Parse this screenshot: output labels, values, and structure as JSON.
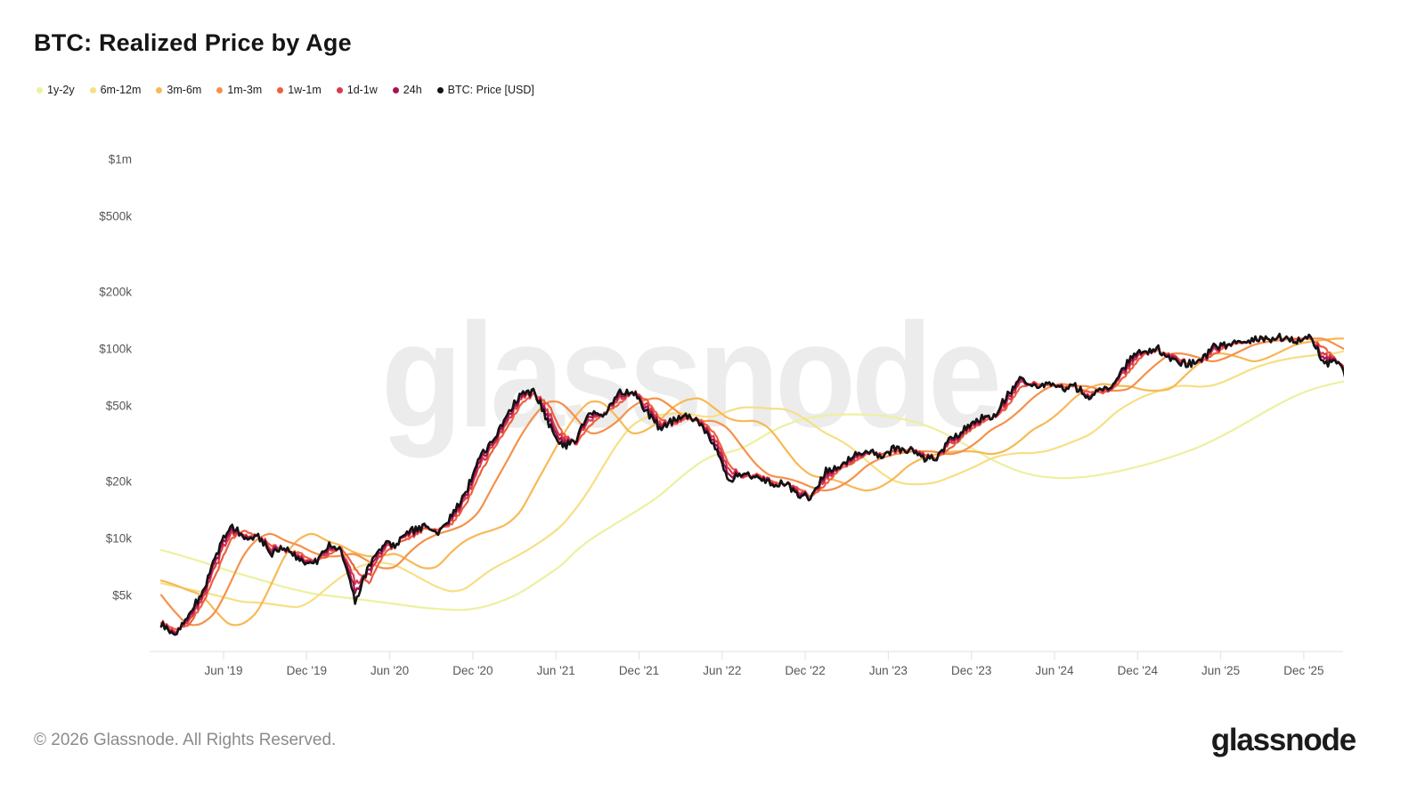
{
  "header": {
    "title": "BTC: Realized Price by Age"
  },
  "chart": {
    "watermark": "glassnode"
  },
  "footer": {
    "copyright": "© 2026 Glassnode. All Rights Reserved.",
    "brand": "glassnode"
  },
  "chart_data": {
    "type": "line",
    "title": "BTC: Realized Price by Age",
    "legend_position": "top-left",
    "grid": false,
    "x_axis": {
      "range_years": [
        2019.0,
        2026.2
      ],
      "ticks": [
        {
          "label": "Jun '19",
          "t": 2019.417
        },
        {
          "label": "Dec '19",
          "t": 2019.917
        },
        {
          "label": "Jun '20",
          "t": 2020.417
        },
        {
          "label": "Dec '20",
          "t": 2020.917
        },
        {
          "label": "Jun '21",
          "t": 2021.417
        },
        {
          "label": "Dec '21",
          "t": 2021.917
        },
        {
          "label": "Jun '22",
          "t": 2022.417
        },
        {
          "label": "Dec '22",
          "t": 2022.917
        },
        {
          "label": "Jun '23",
          "t": 2023.417
        },
        {
          "label": "Dec '23",
          "t": 2023.917
        },
        {
          "label": "Jun '24",
          "t": 2024.417
        },
        {
          "label": "Dec '24",
          "t": 2024.917
        },
        {
          "label": "Jun '25",
          "t": 2025.417
        },
        {
          "label": "Dec '25",
          "t": 2025.917
        }
      ]
    },
    "y_axis": {
      "scale": "log",
      "unit": "USD",
      "values_in": "thousands_of_usd",
      "ticks": [
        {
          "label": "$1m",
          "v": 1000
        },
        {
          "label": "$500k",
          "v": 500
        },
        {
          "label": "$200k",
          "v": 200
        },
        {
          "label": "$100k",
          "v": 100
        },
        {
          "label": "$50k",
          "v": 50
        },
        {
          "label": "$20k",
          "v": 20
        },
        {
          "label": "$10k",
          "v": 10
        },
        {
          "label": "$5k",
          "v": 5
        }
      ]
    },
    "series": [
      {
        "name": "1y-2y",
        "color": "#edf0a0",
        "x_start": 2019.042,
        "x_step_months": 1,
        "values": [
          8.7,
          8.3,
          7.9,
          7.5,
          7.1,
          6.7,
          6.4,
          6.1,
          5.8,
          5.5,
          5.3,
          5.1,
          5.0,
          4.9,
          4.8,
          4.7,
          4.6,
          4.5,
          4.4,
          4.3,
          4.25,
          4.2,
          4.2,
          4.3,
          4.5,
          4.8,
          5.2,
          5.8,
          6.5,
          7.3,
          8.7,
          9.9,
          11.0,
          12.2,
          13.5,
          15.0,
          16.8,
          19.5,
          22.5,
          25.5,
          27.8,
          28.4,
          30.0,
          33.0,
          36.5,
          39.5,
          42.0,
          43.5,
          44.5,
          45.0,
          45.2,
          45.0,
          44.5,
          43.5,
          42.0,
          40.0,
          37.5,
          34.5,
          31.5,
          28.5,
          26.0,
          24.0,
          22.5,
          21.5,
          21.0,
          20.8,
          20.9,
          21.2,
          21.8,
          22.5,
          23.4,
          24.4,
          25.6,
          27.0,
          28.6,
          30.5,
          33.0,
          36.0,
          39.5,
          43.5,
          48.0,
          52.5,
          57.0,
          61.0,
          64.0,
          66.5,
          68.5
        ]
      },
      {
        "name": "6m-12m",
        "color": "#f7df85",
        "x_start": 2019.042,
        "x_step_months": 1,
        "values": [
          5.8,
          5.6,
          5.4,
          5.2,
          5.0,
          4.8,
          4.6,
          4.6,
          4.5,
          4.4,
          4.3,
          4.75,
          5.5,
          6.3,
          7.0,
          7.4,
          7.5,
          7.2,
          6.6,
          6.0,
          5.5,
          5.2,
          5.4,
          6.2,
          7.0,
          7.6,
          8.3,
          9.2,
          10.3,
          11.8,
          14.5,
          18.5,
          24.6,
          32.3,
          39.9,
          43.7,
          44.83,
          45.83,
          46.0,
          43.83,
          43.83,
          47.17,
          49.33,
          49.17,
          48.33,
          48.33,
          45.17,
          40.17,
          35.67,
          33.08,
          29.58,
          25.45,
          22.08,
          19.85,
          19.28,
          19.33,
          19.72,
          21.1,
          22.63,
          24.4,
          26.63,
          27.75,
          28.28,
          28.17,
          28.92,
          30.63,
          32.8,
          35.02,
          39.93,
          46.97,
          51.88,
          56.63,
          59.8,
          63.5,
          64.08,
          63.0,
          64.0,
          68.33,
          74.0,
          79.83,
          84.25,
          87.67,
          90.33,
          92.17,
          93.83,
          95.5,
          99.83
        ]
      },
      {
        "name": "3m-6m",
        "color": "#f7b955",
        "x_start": 2019.042,
        "x_step_months": 1,
        "values": [
          6.0,
          5.7,
          5.3,
          5.03,
          4.07,
          3.43,
          3.53,
          4.1,
          5.83,
          8.43,
          10.13,
          10.8,
          9.63,
          9.2,
          8.37,
          8.0,
          8.07,
          8.4,
          7.53,
          6.87,
          7.03,
          8.6,
          9.83,
          10.6,
          11.1,
          11.87,
          13.83,
          19.23,
          25.83,
          35.33,
          45.33,
          54.0,
          52.0,
          43.0,
          34.67,
          37.0,
          41.67,
          50.0,
          54.33,
          55.33,
          48.33,
          42.33,
          41.33,
          42.0,
          38.0,
          30.0,
          24.17,
          21.17,
          20.9,
          20.0,
          18.53,
          17.67,
          18.67,
          20.9,
          24.53,
          26.6,
          27.9,
          28.73,
          28.9,
          28.67,
          27.6,
          28.93,
          32.6,
          38.0,
          41.1,
          47.27,
          55.93,
          62.67,
          66.0,
          63.67,
          63.67,
          60.33,
          60.0,
          61.33,
          73.33,
          85.0,
          96.0,
          94.0,
          89.67,
          84.67,
          90.33,
          98.0,
          106.33,
          109.33,
          111.67,
          113.67,
          113.0
        ]
      },
      {
        "name": "1m-3m",
        "color": "#f5914a",
        "x_start": 2019.042,
        "x_step_months": 1,
        "values": [
          5.03,
          4.07,
          3.43,
          3.53,
          4.1,
          5.83,
          8.43,
          10.13,
          10.8,
          9.63,
          9.2,
          8.37,
          8.0,
          8.07,
          8.4,
          7.53,
          6.87,
          7.03,
          8.6,
          9.83,
          10.6,
          11.1,
          11.87,
          13.83,
          19.23,
          25.83,
          35.33,
          45.33,
          54.0,
          52.0,
          43.0,
          34.67,
          37.0,
          41.67,
          50.0,
          54.33,
          55.33,
          48.33,
          42.33,
          41.33,
          42.0,
          38.0,
          30.0,
          24.17,
          21.17,
          20.9,
          20.0,
          18.53,
          17.67,
          18.67,
          20.9,
          24.53,
          26.6,
          27.9,
          28.73,
          28.9,
          28.67,
          27.6,
          28.93,
          32.6,
          38.0,
          41.1,
          47.27,
          55.93,
          62.67,
          66.0,
          63.67,
          63.67,
          60.33,
          60.0,
          61.33,
          73.33,
          85.0,
          96.0,
          94.0,
          89.67,
          84.67,
          90.33,
          98.0,
          106.33,
          109.33,
          111.67,
          113.67,
          113.0,
          114.0,
          103.33,
          95.0
        ]
      },
      {
        "name": "1w-1m",
        "color": "#ee5f3d",
        "x_start": 2019.042,
        "x_step_months": 1,
        "values": [
          3.61,
          3.32,
          3.51,
          4.54,
          6.6,
          9.88,
          11.13,
          10.3,
          9.2,
          8.62,
          8.46,
          7.53,
          8.1,
          9.02,
          6.91,
          5.77,
          8.15,
          9.3,
          10.02,
          11.22,
          11.24,
          11.88,
          15.14,
          21.78,
          29.7,
          38.85,
          50.95,
          57.9,
          50.45,
          35.5,
          31.8,
          39.85,
          45.65,
          50.75,
          59.45,
          54.15,
          42.95,
          39.8,
          42.9,
          42.2,
          35.5,
          24.5,
          21.13,
          21.83,
          20.19,
          19.47,
          18.36,
          16.6,
          19.39,
          23.03,
          25.19,
          28.18,
          28.19,
          28.46,
          29.78,
          28.15,
          26.64,
          29.82,
          35.3,
          39.98,
          42.91,
          48.74,
          61.85,
          66.3,
          64.35,
          64.2,
          62.45,
          59.85,
          58.25,
          63.7,
          78.25,
          93.8,
          97.8,
          92.3,
          84.65,
          83.9,
          93.1,
          104.35,
          107.8,
          110.9,
          112.45,
          114.65,
          113.3,
          112.7,
          101.6,
          84.45,
          74.65
        ]
      },
      {
        "name": "1d-1w",
        "color": "#d83a4f",
        "x_start": 2019.042,
        "x_step_months": 1,
        "values": [
          3.56,
          3.22,
          3.73,
          4.84,
          7.37,
          10.75,
          10.75,
          10.3,
          8.9,
          8.79,
          8.16,
          7.38,
          8.6,
          8.92,
          5.86,
          6.42,
          8.67,
          9.3,
          10.42,
          11.39,
          11.04,
          12.48,
          16.21,
          24.15,
          31.2,
          42.1,
          53.7,
          58.4,
          45.7,
          33.0,
          32.8,
          43.1,
          44.9,
          54.5,
          59.7,
          50.9,
          40.7,
          40.8,
          43.4,
          41.2,
          33,
          23,
          21.75,
          21.45,
          19.74,
          19.62,
          17.56,
          16.6,
          20.94,
          23.15,
          26.24,
          28.55,
          27.74,
          29.16,
          29.65,
          27.4,
          26.71,
          31.49,
          36.3,
          41.35,
          42.86,
          52.04,
          65.1,
          64.8,
          65.1,
          63.2,
          62.7,
          58.1,
          59.5,
          65.2,
          84.5,
          94.8,
          98.8,
          90.2,
          83.9,
          84.4,
          97.6,
          105.1,
          108.8,
          111.4,
          112.7,
          115.1,
          111.8,
          114.2,
          93.6,
          84.7,
          68.9
        ]
      },
      {
        "name": "24h",
        "color": "#a41353",
        "x_start": 2019.042,
        "x_step_months": 1,
        "values": [
          3.53,
          3.16,
          3.87,
          5.02,
          7.84,
          11.28,
          10.53,
          10.3,
          8.6,
          8.9,
          7.98,
          7.29,
          8.9,
          8.86,
          5.23,
          6.81,
          8.99,
          9.3,
          10.66,
          11.5,
          10.92,
          12.84,
          16.86,
          25.58,
          32.1,
          44.05,
          55.35,
          58.7,
          42.85,
          31.5,
          33.4,
          45.05,
          44.45,
          56.75,
          59.85,
          48.95,
          39.35,
          41.4,
          43.7,
          40.6,
          31.5,
          21.5,
          22.13,
          21.23,
          19.47,
          19.71,
          17.08,
          16.6,
          21.87,
          23.23,
          26.87,
          28.78,
          27.47,
          29.58,
          29.58,
          26.95,
          26.77,
          32.5,
          36.9,
          42.18,
          42.83,
          54.02,
          67.05,
          63.9,
          65.55,
          62.6,
          62.85,
          57.05,
          60.25,
          66.1,
          88.25,
          95.4,
          99.4,
          88.1,
          83.45,
          84.7,
          100.3,
          105.55,
          109.4,
          111.7,
          112.85,
          115.55,
          110.9,
          115.1,
          88.8,
          84.85,
          65.45
        ]
      },
      {
        "name": "BTC: Price [USD]",
        "color": "#131313",
        "x_start": 2019.042,
        "x_step_months": 1,
        "values": [
          3.5,
          3.1,
          4.0,
          5.2,
          8.3,
          11.8,
          10.3,
          10.3,
          8.3,
          9.0,
          7.8,
          7.2,
          9.2,
          8.8,
          4.6,
          7.2,
          9.3,
          9.3,
          10.9,
          11.6,
          10.8,
          13.2,
          17.5,
          27.0,
          33,
          46,
          57,
          59,
          40,
          30,
          34,
          47,
          44,
          59,
          60,
          47,
          38,
          42,
          44,
          40,
          30,
          20,
          22.5,
          21,
          19.2,
          19.8,
          16.6,
          16.6,
          22.8,
          23.3,
          27.5,
          29,
          27.2,
          30,
          29.5,
          26.5,
          26.8,
          33.5,
          37.5,
          43,
          42.8,
          56,
          69,
          63,
          66,
          62,
          63,
          56,
          61,
          67,
          92,
          96,
          100,
          86,
          83,
          85,
          103,
          106,
          110,
          112,
          113,
          116,
          110,
          116,
          84,
          85,
          62
        ]
      }
    ]
  }
}
